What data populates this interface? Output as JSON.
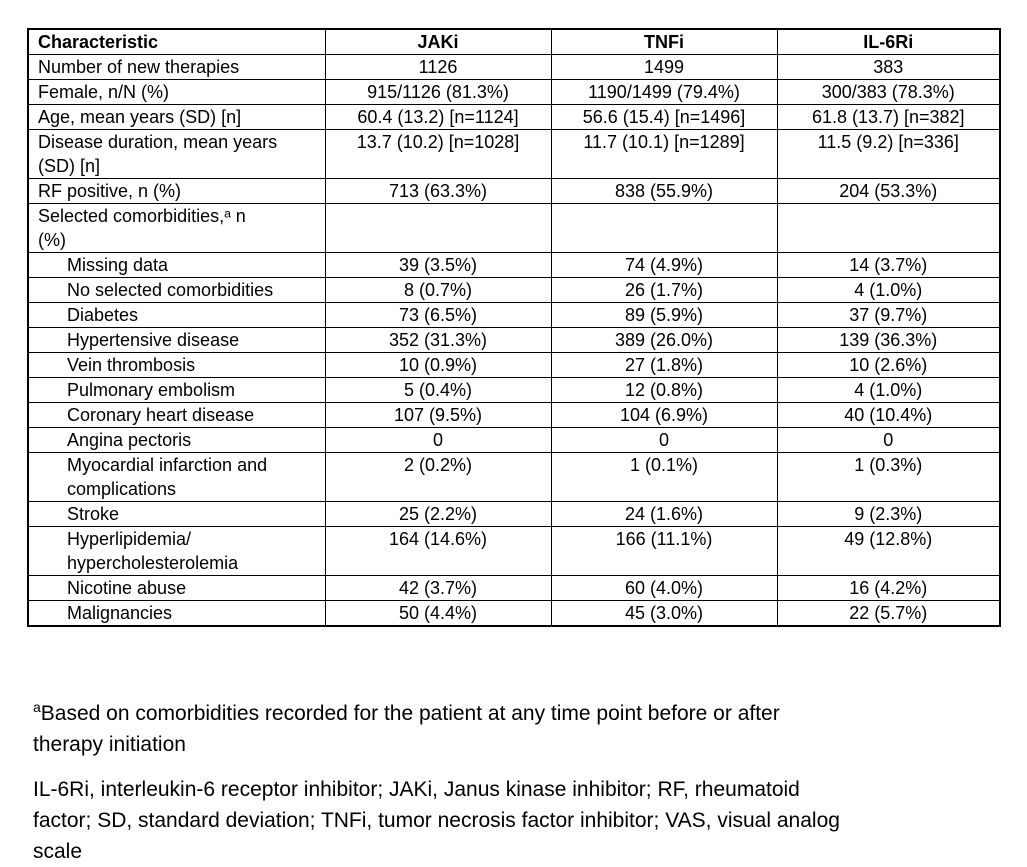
{
  "table": {
    "columns": [
      "Characteristic",
      "JAKi",
      "TNFi",
      "IL-6Ri"
    ],
    "rows": [
      {
        "label": "Number of new therapies",
        "indent": false,
        "values": [
          "1126",
          "1499",
          "383"
        ]
      },
      {
        "label": "Female, n/N (%)",
        "indent": false,
        "values": [
          "915/1126 (81.3%)",
          "1190/1499 (79.4%)",
          "300/383 (78.3%)"
        ]
      },
      {
        "label": "Age, mean years (SD) [n]",
        "indent": false,
        "values": [
          "60.4 (13.2) [n=1124]",
          "56.6 (15.4) [n=1496]",
          "61.8 (13.7) [n=382]"
        ]
      },
      {
        "label": "Disease duration, mean years\n(SD) [n]",
        "indent": false,
        "values": [
          "13.7 (10.2) [n=1028]",
          "11.7 (10.1) [n=1289]",
          "11.5 (9.2) [n=336]"
        ]
      },
      {
        "label": "RF positive, n (%)",
        "indent": false,
        "values": [
          "713 (63.3%)",
          "838 (55.9%)",
          "204 (53.3%)"
        ]
      },
      {
        "label": "Selected comorbidities,ᵃ n\n(%)",
        "indent": false,
        "values": [
          "",
          "",
          ""
        ]
      },
      {
        "label": "Missing data",
        "indent": true,
        "values": [
          "39 (3.5%)",
          "74 (4.9%)",
          "14 (3.7%)"
        ]
      },
      {
        "label": "No selected comorbidities",
        "indent": true,
        "values": [
          "8 (0.7%)",
          "26 (1.7%)",
          "4 (1.0%)"
        ]
      },
      {
        "label": "Diabetes",
        "indent": true,
        "values": [
          "73 (6.5%)",
          "89 (5.9%)",
          "37 (9.7%)"
        ]
      },
      {
        "label": "Hypertensive disease",
        "indent": true,
        "values": [
          "352 (31.3%)",
          "389 (26.0%)",
          "139 (36.3%)"
        ]
      },
      {
        "label": "Vein thrombosis",
        "indent": true,
        "values": [
          "10 (0.9%)",
          "27 (1.8%)",
          "10 (2.6%)"
        ]
      },
      {
        "label": "Pulmonary embolism",
        "indent": true,
        "values": [
          "5 (0.4%)",
          "12 (0.8%)",
          "4 (1.0%)"
        ]
      },
      {
        "label": "Coronary heart disease",
        "indent": true,
        "values": [
          "107 (9.5%)",
          "104 (6.9%)",
          "40 (10.4%)"
        ]
      },
      {
        "label": "Angina pectoris",
        "indent": true,
        "values": [
          "0",
          "0",
          "0"
        ]
      },
      {
        "label": "Myocardial infarction and\ncomplications",
        "indent": true,
        "values": [
          "2 (0.2%)",
          "1 (0.1%)",
          "1 (0.3%)"
        ]
      },
      {
        "label": "Stroke",
        "indent": true,
        "values": [
          "25 (2.2%)",
          "24 (1.6%)",
          "9 (2.3%)"
        ]
      },
      {
        "label": "Hyperlipidemia/\nhypercholesterolemia",
        "indent": true,
        "values": [
          "164 (14.6%)",
          "166 (11.1%)",
          "49 (12.8%)"
        ]
      },
      {
        "label": "Nicotine abuse",
        "indent": true,
        "values": [
          "42 (3.7%)",
          "60 (4.0%)",
          "16 (4.2%)"
        ]
      },
      {
        "label": "Malignancies",
        "indent": true,
        "values": [
          "50 (4.4%)",
          "45 (3.0%)",
          "22 (5.7%)"
        ]
      }
    ]
  },
  "footnotes": {
    "a_marker": "a",
    "a_text": "Based on comorbidities recorded for the patient at any time point before or after\ntherapy initiation",
    "abbreviations": "IL-6Ri, interleukin-6 receptor inhibitor; JAKi, Janus kinase inhibitor; RF, rheumatoid\nfactor; SD, standard deviation; TNFi, tumor necrosis factor inhibitor; VAS, visual analog\nscale"
  }
}
